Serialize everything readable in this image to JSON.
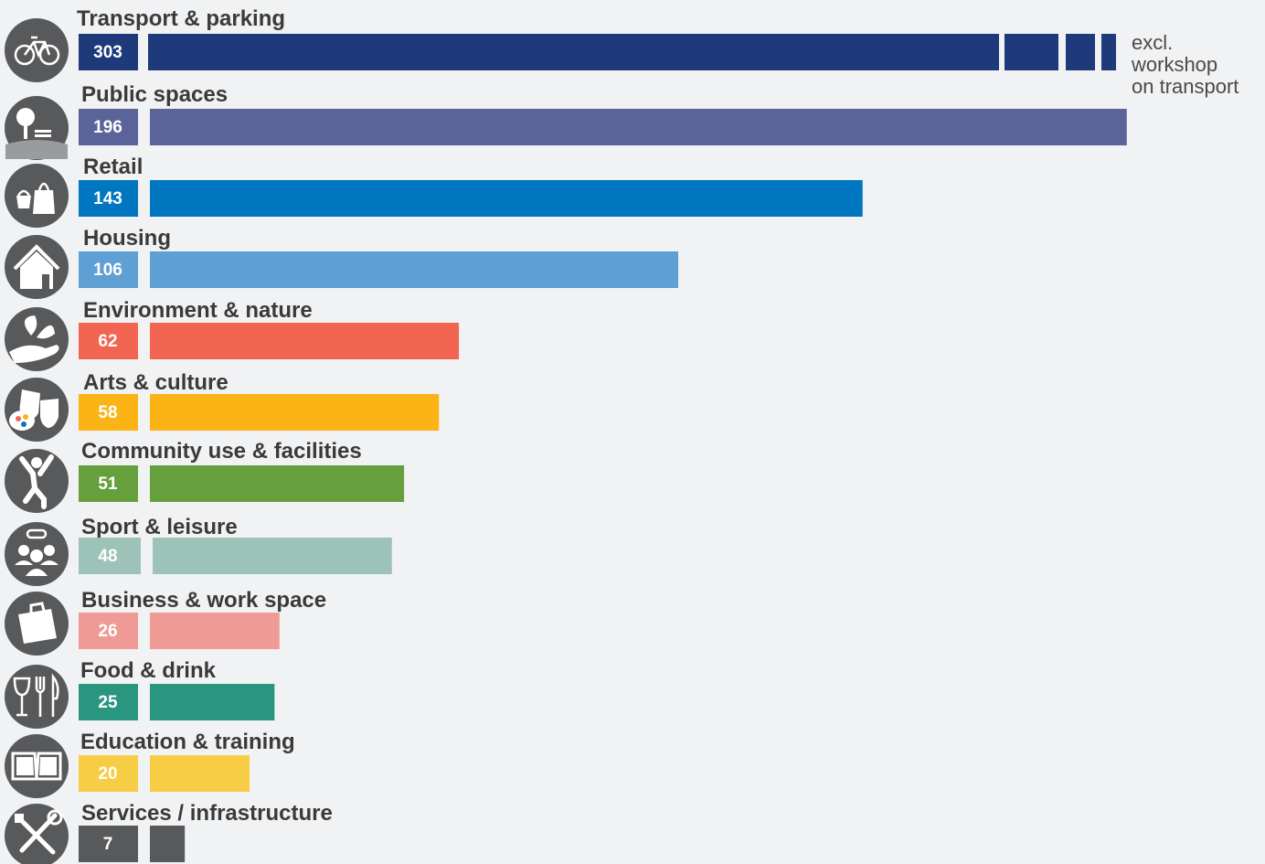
{
  "chart_data": {
    "type": "bar",
    "orientation": "horizontal",
    "categories": [
      "Transport & parking",
      "Public spaces",
      "Retail",
      "Housing",
      "Environment & nature",
      "Arts & culture",
      "Community use & facilities",
      "Sport & leisure",
      "Business & work space",
      "Food & drink",
      "Education & training",
      "Services / infrastructure"
    ],
    "values": [
      303,
      196,
      143,
      106,
      62,
      58,
      51,
      48,
      26,
      25,
      20,
      7
    ],
    "colors": [
      "#1e3a7b",
      "#5a6498",
      "#0077c0",
      "#5e9fd4",
      "#f26552",
      "#fbb316",
      "#66a03d",
      "#9dc3b8",
      "#ef9a95",
      "#2a9680",
      "#f6cd44",
      "#58595b"
    ],
    "icons": [
      "bicycle-icon",
      "tree-bench-icon",
      "shopping-basket-icon",
      "house-icon",
      "plant-hand-icon",
      "theatre-masks-icon",
      "person-jumping-icon",
      "group-people-icon",
      "briefcase-icon",
      "glass-cutlery-icon",
      "open-book-icon",
      "tools-icon"
    ],
    "annotation": "excl.\nworkshop\non transport",
    "broken_axis_bar": "Transport & parking"
  }
}
